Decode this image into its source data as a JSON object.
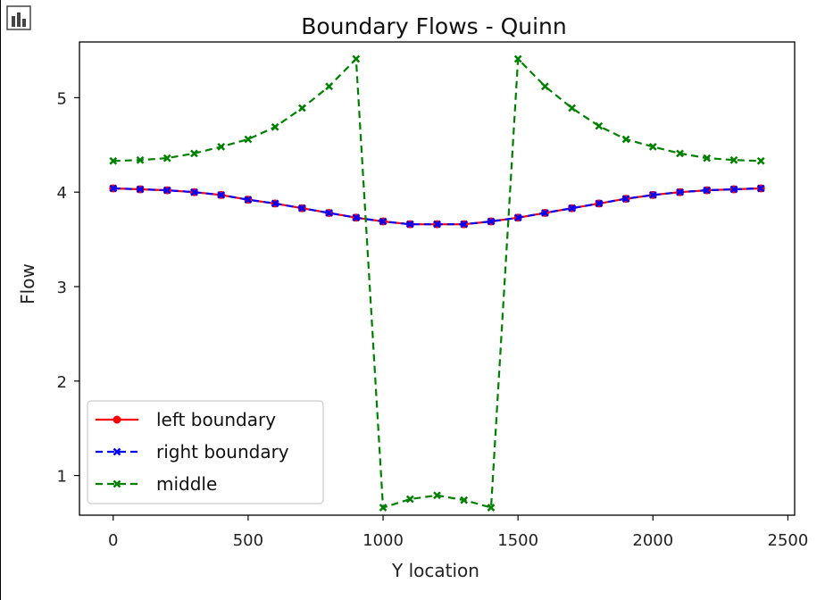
{
  "toolbar": {
    "chart_icon": "bar-chart-icon"
  },
  "chart_data": {
    "type": "line",
    "title": "Boundary Flows - Quinn",
    "xlabel": "Y location",
    "ylabel": "Flow",
    "xlim": [
      -125,
      2525
    ],
    "ylim": [
      0.58,
      5.59
    ],
    "xticks": [
      0,
      500,
      1000,
      1500,
      2000,
      2500
    ],
    "yticks": [
      1,
      2,
      3,
      4,
      5
    ],
    "grid": false,
    "legend_position": "lower-left",
    "x": [
      0,
      100,
      200,
      300,
      400,
      500,
      600,
      700,
      800,
      900,
      1000,
      1100,
      1200,
      1300,
      1400,
      1500,
      1600,
      1700,
      1800,
      1900,
      2000,
      2100,
      2200,
      2300,
      2400
    ],
    "series": [
      {
        "name": "left boundary",
        "color": "#ff0000",
        "line_style": "solid",
        "marker": "circle",
        "values": [
          4.04,
          4.03,
          4.02,
          4.0,
          3.97,
          3.92,
          3.88,
          3.83,
          3.78,
          3.73,
          3.69,
          3.66,
          3.66,
          3.66,
          3.69,
          3.73,
          3.78,
          3.83,
          3.88,
          3.93,
          3.97,
          4.0,
          4.02,
          4.03,
          4.04
        ]
      },
      {
        "name": "right boundary",
        "color": "#0000ff",
        "line_style": "dashed",
        "marker": "x",
        "values": [
          4.04,
          4.03,
          4.02,
          4.0,
          3.97,
          3.92,
          3.88,
          3.83,
          3.78,
          3.73,
          3.69,
          3.66,
          3.66,
          3.66,
          3.69,
          3.73,
          3.78,
          3.83,
          3.88,
          3.93,
          3.97,
          4.0,
          4.02,
          4.03,
          4.04
        ]
      },
      {
        "name": "middle",
        "color": "#008000",
        "line_style": "dashed",
        "marker": "x",
        "values": [
          4.33,
          4.34,
          4.36,
          4.41,
          4.48,
          4.56,
          4.69,
          4.89,
          5.12,
          5.41,
          0.66,
          0.75,
          0.79,
          0.74,
          0.66,
          5.41,
          5.12,
          4.89,
          4.7,
          4.56,
          4.48,
          4.41,
          4.36,
          4.34,
          4.33
        ]
      }
    ]
  }
}
